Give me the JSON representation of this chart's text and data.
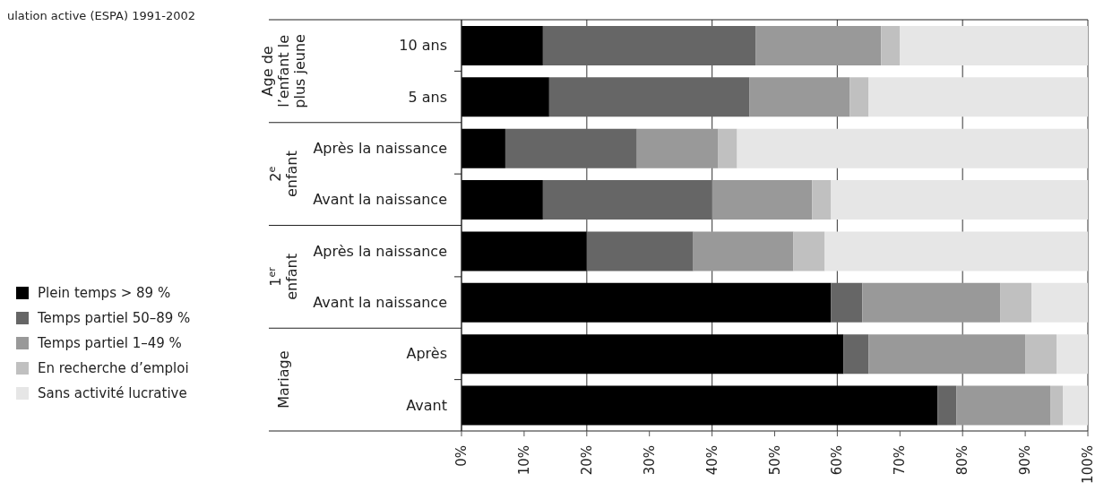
{
  "chart_data": {
    "type": "bar",
    "orientation": "horizontal",
    "stacked": true,
    "title": "ulation active (ESPA) 1991-2002",
    "categories": [
      "10 ans",
      "5 ans",
      "Après la naissance",
      "Avant la naissance",
      "Après la naissance",
      "Avant la naissance",
      "Après",
      "Avant"
    ],
    "series": [
      {
        "name": "Plein temps > 89 %",
        "color": "#000000",
        "values": [
          13,
          14,
          7,
          13,
          20,
          59,
          61,
          76
        ]
      },
      {
        "name": "Temps partiel 50–89 %",
        "color": "#666666",
        "values": [
          34,
          32,
          21,
          27,
          17,
          5,
          4,
          3
        ]
      },
      {
        "name": "Temps partiel 1–49 %",
        "color": "#999999",
        "values": [
          20,
          16,
          13,
          16,
          16,
          22,
          25,
          15
        ]
      },
      {
        "name": "En recherche d’emploi",
        "color": "#c0c0c0",
        "values": [
          3,
          3,
          3,
          3,
          5,
          5,
          5,
          2
        ]
      },
      {
        "name": "Sans activité lucrative",
        "color": "#e6e6e6",
        "values": [
          30,
          35,
          56,
          41,
          42,
          9,
          5,
          4
        ]
      }
    ],
    "annotations": [
      "Age de l’enfant le plus jeune",
      "2$^{e}$ enfant",
      "1$^{er}$ enfant",
      "Mariage"
    ],
    "xlim": [
      0,
      100
    ],
    "xticks": [
      {
        "value": 0,
        "label": "0%"
      },
      {
        "value": 10,
        "label": "10%"
      },
      {
        "value": 20,
        "label": "20%"
      },
      {
        "value": 30,
        "label": "30%"
      },
      {
        "value": 40,
        "label": "40%"
      },
      {
        "value": 50,
        "label": "50%"
      },
      {
        "value": 60,
        "label": "60%"
      },
      {
        "value": 70,
        "label": "70%"
      },
      {
        "value": 80,
        "label": "80%"
      },
      {
        "value": 90,
        "label": "90%"
      },
      {
        "value": 100,
        "label": "100%"
      }
    ],
    "grid": "x",
    "legend": "left"
  }
}
